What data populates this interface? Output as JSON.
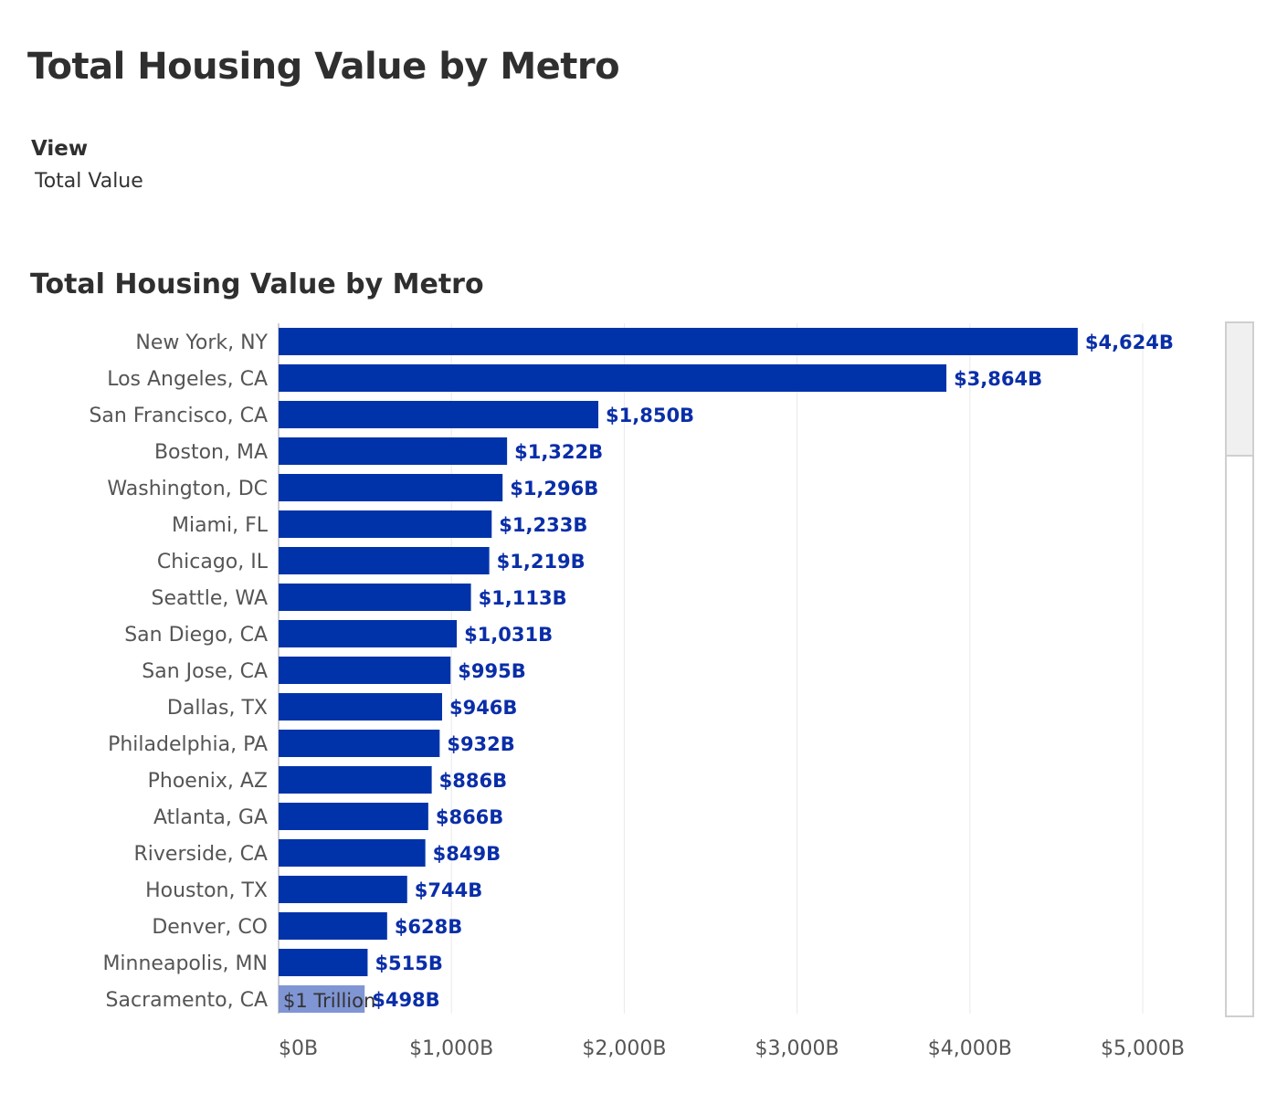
{
  "page": {
    "title": "Total Housing Value by Metro",
    "view_label": "View",
    "view_value": "Total Value"
  },
  "colors": {
    "bar": "#0033aa",
    "bar_highlight": "#8095d4",
    "value_label": "#0a2ea8",
    "category_label": "#555555",
    "axis_label": "#555555",
    "grid": "#e9e9e9",
    "axis_line": "#bfbfbf"
  },
  "chart_data": {
    "type": "bar",
    "orientation": "horizontal",
    "title": "Total Housing Value by Metro",
    "xlabel": "",
    "ylabel": "",
    "xlim": [
      0,
      5500
    ],
    "xticks": [
      0,
      1000,
      2000,
      3000,
      4000,
      5000
    ],
    "xtick_labels": [
      "$0B",
      "$1,000B",
      "$2,000B",
      "$3,000B",
      "$4,000B",
      "$5,000B"
    ],
    "grid": true,
    "categories": [
      "New York, NY",
      "Los Angeles, CA",
      "San Francisco, CA",
      "Boston, MA",
      "Washington, DC",
      "Miami, FL",
      "Chicago, IL",
      "Seattle, WA",
      "San Diego, CA",
      "San Jose, CA",
      "Dallas, TX",
      "Philadelphia, PA",
      "Phoenix, AZ",
      "Atlanta, GA",
      "Riverside, CA",
      "Houston, TX",
      "Denver, CO",
      "Minneapolis, MN",
      "Sacramento, CA"
    ],
    "values": [
      4624,
      3864,
      1850,
      1322,
      1296,
      1233,
      1219,
      1113,
      1031,
      995,
      946,
      932,
      886,
      866,
      849,
      744,
      628,
      515,
      498
    ],
    "value_labels": [
      "$4,624B",
      "$3,864B",
      "$1,850B",
      "$1,322B",
      "$1,296B",
      "$1,233B",
      "$1,219B",
      "$1,113B",
      "$1,031B",
      "$995B",
      "$946B",
      "$932B",
      "$886B",
      "$866B",
      "$849B",
      "$744B",
      "$628B",
      "$515B",
      "$498B"
    ],
    "highlighted_index": 18,
    "annotation": "$1 Trillion"
  }
}
